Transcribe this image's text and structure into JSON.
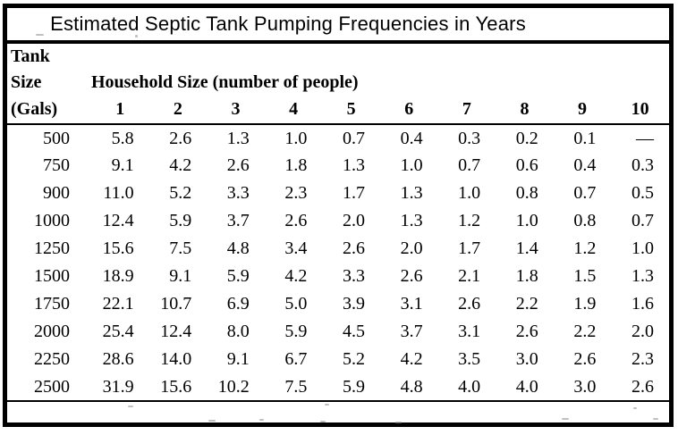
{
  "title": "Estimated Septic Tank Pumping Frequencies in Years",
  "table": {
    "corner_header": {
      "line1": "Tank",
      "line2": "Size",
      "line3": "(Gals)"
    },
    "group_header": "Household Size (number of people)",
    "columns": [
      "1",
      "2",
      "3",
      "4",
      "5",
      "6",
      "7",
      "8",
      "9",
      "10"
    ],
    "rows": [
      {
        "tank": "500",
        "values": [
          "5.8",
          "2.6",
          "1.3",
          "1.0",
          "0.7",
          "0.4",
          "0.3",
          "0.2",
          "0.1",
          "—"
        ]
      },
      {
        "tank": "750",
        "values": [
          "9.1",
          "4.2",
          "2.6",
          "1.8",
          "1.3",
          "1.0",
          "0.7",
          "0.6",
          "0.4",
          "0.3"
        ]
      },
      {
        "tank": "900",
        "values": [
          "11.0",
          "5.2",
          "3.3",
          "2.3",
          "1.7",
          "1.3",
          "1.0",
          "0.8",
          "0.7",
          "0.5"
        ]
      },
      {
        "tank": "1000",
        "values": [
          "12.4",
          "5.9",
          "3.7",
          "2.6",
          "2.0",
          "1.3",
          "1.2",
          "1.0",
          "0.8",
          "0.7"
        ]
      },
      {
        "tank": "1250",
        "values": [
          "15.6",
          "7.5",
          "4.8",
          "3.4",
          "2.6",
          "2.0",
          "1.7",
          "1.4",
          "1.2",
          "1.0"
        ]
      },
      {
        "tank": "1500",
        "values": [
          "18.9",
          "9.1",
          "5.9",
          "4.2",
          "3.3",
          "2.6",
          "2.1",
          "1.8",
          "1.5",
          "1.3"
        ]
      },
      {
        "tank": "1750",
        "values": [
          "22.1",
          "10.7",
          "6.9",
          "5.0",
          "3.9",
          "3.1",
          "2.6",
          "2.2",
          "1.9",
          "1.6"
        ]
      },
      {
        "tank": "2000",
        "values": [
          "25.4",
          "12.4",
          "8.0",
          "5.9",
          "4.5",
          "3.7",
          "3.1",
          "2.6",
          "2.2",
          "2.0"
        ]
      },
      {
        "tank": "2250",
        "values": [
          "28.6",
          "14.0",
          "9.1",
          "6.7",
          "5.2",
          "4.2",
          "3.5",
          "3.0",
          "2.6",
          "2.3"
        ]
      },
      {
        "tank": "2500",
        "values": [
          "31.9",
          "15.6",
          "10.2",
          "7.5",
          "5.9",
          "4.8",
          "4.0",
          "4.0",
          "3.0",
          "2.6"
        ]
      }
    ]
  },
  "colors": {
    "border": "#000000",
    "text": "#000000",
    "background": "#ffffff"
  }
}
